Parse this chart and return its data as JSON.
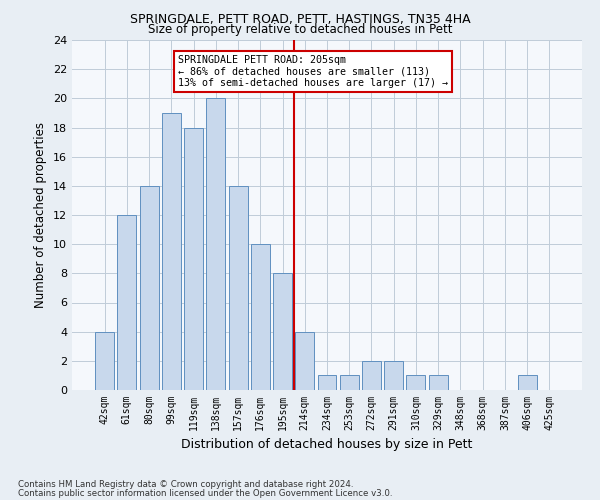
{
  "title1": "SPRINGDALE, PETT ROAD, PETT, HASTINGS, TN35 4HA",
  "title2": "Size of property relative to detached houses in Pett",
  "xlabel": "Distribution of detached houses by size in Pett",
  "ylabel": "Number of detached properties",
  "categories": [
    "42sqm",
    "61sqm",
    "80sqm",
    "99sqm",
    "119sqm",
    "138sqm",
    "157sqm",
    "176sqm",
    "195sqm",
    "214sqm",
    "234sqm",
    "253sqm",
    "272sqm",
    "291sqm",
    "310sqm",
    "329sqm",
    "348sqm",
    "368sqm",
    "387sqm",
    "406sqm",
    "425sqm"
  ],
  "values": [
    4,
    12,
    14,
    19,
    18,
    20,
    14,
    10,
    8,
    4,
    1,
    1,
    2,
    2,
    1,
    1,
    0,
    0,
    0,
    1,
    0
  ],
  "bar_color": "#c8d8ec",
  "bar_edgecolor": "#6090c0",
  "vline_x": 8.5,
  "vline_color": "#cc0000",
  "ylim": [
    0,
    24
  ],
  "yticks": [
    0,
    2,
    4,
    6,
    8,
    10,
    12,
    14,
    16,
    18,
    20,
    22,
    24
  ],
  "annotation_title": "SPRINGDALE PETT ROAD: 205sqm",
  "annotation_line1": "← 86% of detached houses are smaller (113)",
  "annotation_line2": "13% of semi-detached houses are larger (17) →",
  "annotation_box_color": "#cc0000",
  "footer1": "Contains HM Land Registry data © Crown copyright and database right 2024.",
  "footer2": "Contains public sector information licensed under the Open Government Licence v3.0.",
  "bg_color": "#e8eef4",
  "plot_bg_color": "#f5f8fc",
  "grid_color": "#c0ccd8"
}
